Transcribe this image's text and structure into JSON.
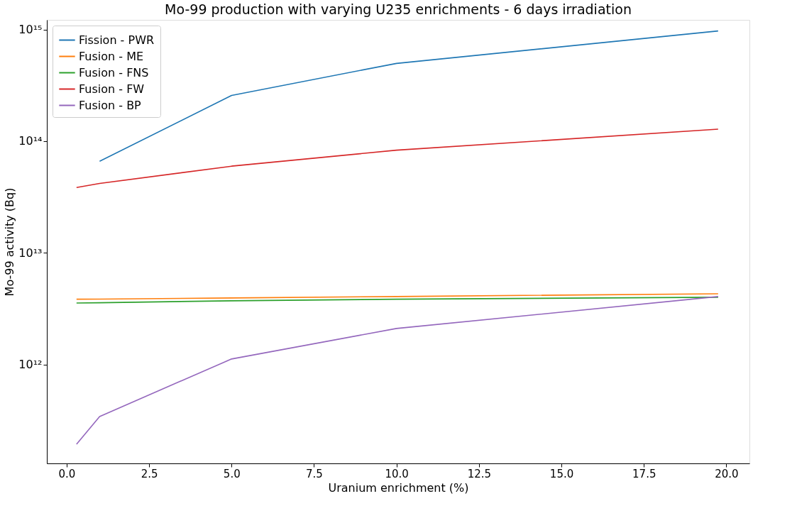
{
  "chart_data": {
    "type": "line",
    "title": "Mo-99 production with varying U235 enrichments - 6 days irradiation",
    "xlabel": "Uranium enrichment (%)",
    "ylabel": "Mo-99 activity (Bq)",
    "log": "y",
    "grid": false,
    "legend": "top left",
    "marker": "none",
    "line_style": "solid",
    "xlim": [
      -0.6,
      20.7
    ],
    "xticks": [
      {
        "value": 0,
        "label": "0.0"
      },
      2.5,
      {
        "value": 5,
        "label": "5.0"
      },
      7.5,
      {
        "value": 10,
        "label": "10.0"
      },
      12.5,
      {
        "value": 15,
        "label": "15.0"
      },
      17.5,
      {
        "value": 20,
        "label": "20.0"
      }
    ],
    "ylim": [
      130000000000.0,
      1220000000000000.0
    ],
    "yticks": [
      {
        "value": 1000000000000.0,
        "label": "10¹²"
      },
      {
        "value": 10000000000000.0,
        "label": "10¹³"
      },
      {
        "value": 100000000000000.0,
        "label": "10¹⁴"
      },
      {
        "value": 1000000000000000.0,
        "label": "10¹⁵"
      }
    ],
    "series": [
      {
        "name": "Fission - PWR",
        "color": "#1f77b4",
        "x": [
          1,
          5,
          10,
          19.75
        ],
        "values": [
          66000000000000.0,
          257000000000000.0,
          497000000000000.0,
          970000000000000.0
        ]
      },
      {
        "name": "Fusion - ME",
        "color": "#ff7f0e",
        "x": [
          0.3,
          1,
          5,
          10,
          19.75
        ],
        "values": [
          3840000000000.0,
          3850000000000.0,
          3940000000000.0,
          4060000000000.0,
          4300000000000.0
        ]
      },
      {
        "name": "Fusion - FNS",
        "color": "#2ca02c",
        "x": [
          0.3,
          1,
          5,
          10,
          19.75
        ],
        "values": [
          3550000000000.0,
          3570000000000.0,
          3720000000000.0,
          3840000000000.0,
          4000000000000.0
        ]
      },
      {
        "name": "Fusion - FW",
        "color": "#d62728",
        "x": [
          0.3,
          1,
          5,
          10,
          19.75
        ],
        "values": [
          38400000000000.0,
          41800000000000.0,
          59700000000000.0,
          83000000000000.0,
          128000000000000.0
        ]
      },
      {
        "name": "Fusion - BP",
        "color": "#9467bd",
        "x": [
          0.3,
          1,
          5,
          10,
          19.75
        ],
        "values": [
          193000000000.0,
          342000000000.0,
          1120000000000.0,
          2100000000000.0,
          4060000000000.0
        ]
      }
    ]
  }
}
